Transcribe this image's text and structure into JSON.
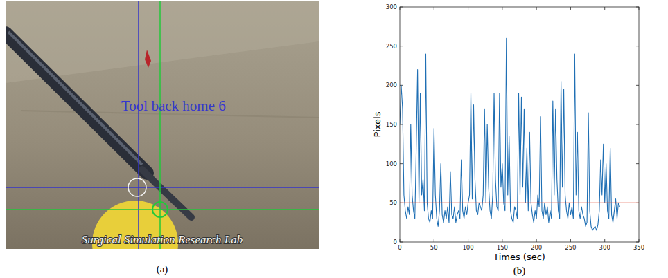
{
  "figure": {
    "panels": [
      {
        "label": "(a)",
        "overlay_text": "Tool back home 6",
        "watermark": "Surgical Simulation Research Lab"
      },
      {
        "label": "(b)"
      }
    ]
  },
  "chart_data": {
    "type": "line",
    "x_label": "Times (sec)",
    "y_label": "Pixels",
    "xlim": [
      0,
      350
    ],
    "ylim": [
      0,
      300
    ],
    "xticks": [
      0,
      50,
      100,
      150,
      200,
      250,
      300,
      350
    ],
    "yticks": [
      0,
      50,
      100,
      150,
      200,
      250,
      300
    ],
    "grid": false,
    "reference_lines": [
      {
        "value": 50,
        "color": "#e0402a"
      }
    ],
    "x": [
      0,
      2,
      4,
      6,
      8,
      10,
      12,
      14,
      16,
      18,
      20,
      22,
      24,
      26,
      28,
      30,
      32,
      34,
      36,
      38,
      40,
      42,
      44,
      46,
      48,
      50,
      52,
      54,
      56,
      58,
      60,
      62,
      64,
      66,
      68,
      70,
      72,
      74,
      76,
      78,
      80,
      82,
      84,
      86,
      88,
      90,
      92,
      94,
      96,
      98,
      100,
      102,
      104,
      106,
      108,
      110,
      112,
      114,
      116,
      118,
      120,
      122,
      124,
      126,
      128,
      130,
      132,
      134,
      136,
      138,
      140,
      142,
      144,
      146,
      148,
      150,
      152,
      154,
      156,
      158,
      160,
      162,
      164,
      166,
      168,
      170,
      172,
      174,
      176,
      178,
      180,
      182,
      184,
      186,
      188,
      190,
      192,
      194,
      196,
      198,
      200,
      202,
      204,
      206,
      208,
      210,
      212,
      214,
      216,
      218,
      220,
      222,
      224,
      226,
      228,
      230,
      232,
      234,
      236,
      238,
      240,
      242,
      244,
      246,
      248,
      250,
      252,
      254,
      256,
      258,
      260,
      262,
      264,
      266,
      268,
      270,
      272,
      274,
      276,
      278,
      280,
      282,
      284,
      286,
      288,
      290,
      292,
      294,
      296,
      298,
      300,
      302,
      304,
      306,
      308,
      310,
      312,
      314,
      316,
      318,
      320,
      322
    ],
    "series": [
      {
        "color": "#1f6fb4",
        "values": [
          150,
          200,
          170,
          60,
          40,
          30,
          45,
          35,
          150,
          60,
          40,
          30,
          120,
          220,
          50,
          190,
          60,
          80,
          40,
          240,
          50,
          30,
          25,
          40,
          30,
          145,
          60,
          30,
          20,
          40,
          100,
          35,
          25,
          40,
          30,
          45,
          25,
          90,
          35,
          30,
          45,
          25,
          35,
          40,
          30,
          105,
          40,
          30,
          45,
          35,
          50,
          60,
          190,
          55,
          175,
          80,
          40,
          35,
          50,
          45,
          40,
          60,
          170,
          50,
          150,
          70,
          40,
          30,
          60,
          190,
          80,
          45,
          40,
          190,
          70,
          100,
          50,
          40,
          260,
          60,
          135,
          40,
          30,
          25,
          45,
          40,
          30,
          190,
          60,
          185,
          70,
          170,
          50,
          120,
          40,
          140,
          50,
          35,
          25,
          40,
          30,
          60,
          45,
          160,
          40,
          30,
          50,
          35,
          45,
          25,
          40,
          30,
          180,
          60,
          170,
          80,
          40,
          30,
          205,
          70,
          195,
          60,
          40,
          30,
          50,
          35,
          45,
          30,
          240,
          60,
          140,
          40,
          30,
          45,
          35,
          30,
          20,
          25,
          165,
          40,
          20,
          15,
          18,
          20,
          15,
          22,
          40,
          105,
          60,
          125,
          50,
          100,
          40,
          30,
          120,
          35,
          25,
          40,
          55,
          30,
          50,
          45
        ]
      }
    ]
  }
}
